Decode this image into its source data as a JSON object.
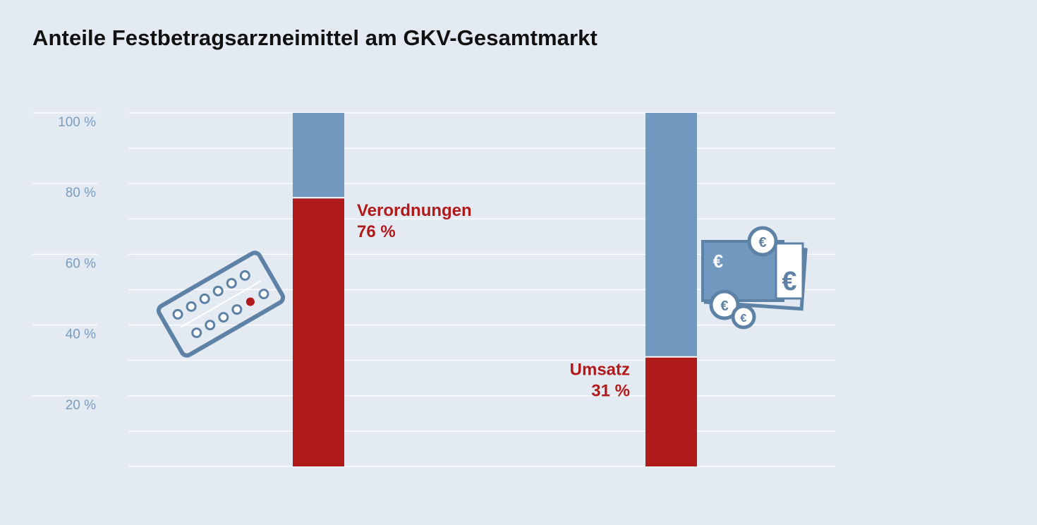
{
  "chart_data": {
    "type": "bar",
    "stacked": true,
    "title": "Anteile Festbetragsarzneimittel am GKV-Gesamtmarkt",
    "ylim": [
      0,
      100
    ],
    "y_ticks": [
      "100 %",
      "80 %",
      "60 %",
      "40 %",
      "20 %"
    ],
    "grid": true,
    "categories": [
      "Verordnungen",
      "Umsatz"
    ],
    "series": [
      {
        "values": [
          76,
          31
        ],
        "color": "#b01a1b"
      },
      {
        "values": [
          24,
          69
        ],
        "color": "#7199c0"
      }
    ],
    "annotations": [
      {
        "category": "Verordnungen",
        "name": "Verordnungen",
        "value": "76 %",
        "side": "right"
      },
      {
        "category": "Umsatz",
        "name": "Umsatz",
        "value": "31 %",
        "side": "left"
      }
    ],
    "icons": [
      "pill-blister-icon",
      "money-euro-icon"
    ]
  }
}
